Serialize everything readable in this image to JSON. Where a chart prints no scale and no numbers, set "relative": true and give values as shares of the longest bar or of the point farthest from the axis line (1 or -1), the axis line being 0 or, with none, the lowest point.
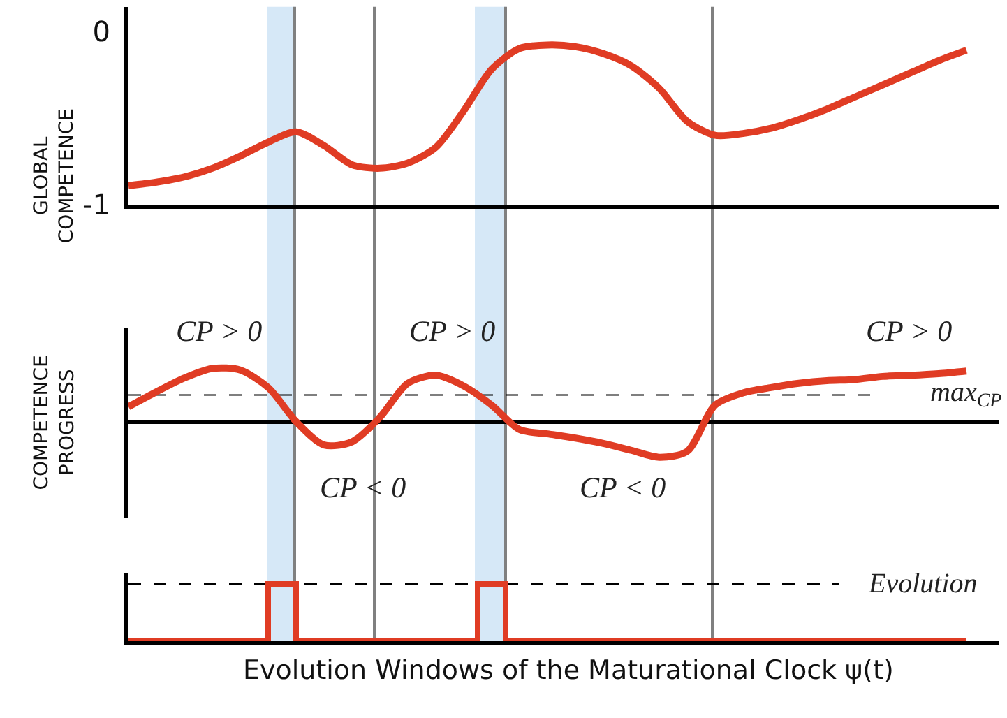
{
  "chart_data": [
    {
      "type": "line",
      "ylabel": "GLOBAL COMPETENCE",
      "categories": [
        null,
        null,
        null,
        null,
        null,
        null,
        null,
        null,
        null,
        null,
        null,
        null,
        null,
        null,
        null,
        null,
        null,
        null,
        null,
        null,
        null,
        null,
        null,
        null,
        null,
        null,
        null,
        null,
        null,
        null,
        null
      ],
      "series": [
        {
          "color": "#e03c24",
          "values": [
            -0.89,
            -0.87,
            -0.84,
            -0.79,
            -0.72,
            -0.64,
            -0.58,
            -0.66,
            -0.77,
            -0.79,
            -0.76,
            -0.67,
            -0.46,
            -0.22,
            -0.1,
            -0.08,
            -0.09,
            -0.13,
            -0.2,
            -0.33,
            -0.52,
            -0.6,
            -0.59,
            -0.56,
            -0.51,
            -0.45,
            -0.38,
            -0.31,
            -0.24,
            -0.17,
            -0.11
          ]
        }
      ],
      "ylim": [
        -1,
        0.14
      ],
      "yticks": [
        0,
        -1
      ],
      "grid": false,
      "line_style": "solid",
      "marker": "none"
    },
    {
      "type": "line",
      "ylabel": "COMPETENCE PROGRESS",
      "relative": true,
      "categories": [
        null,
        null,
        null,
        null,
        null,
        null,
        null,
        null,
        null,
        null,
        null,
        null,
        null,
        null,
        null,
        null,
        null,
        null,
        null,
        null,
        null,
        null,
        null,
        null,
        null,
        null,
        null,
        null,
        null,
        null,
        null
      ],
      "series": [
        {
          "color": "#e03c24",
          "values": [
            0.28,
            0.56,
            0.82,
            1,
            0.97,
            0.64,
            0,
            -0.44,
            -0.38,
            0.08,
            0.72,
            0.87,
            0.67,
            0.31,
            -0.15,
            -0.23,
            -0.31,
            -0.41,
            -0.54,
            -0.67,
            -0.56,
            0.31,
            0.54,
            0.64,
            0.72,
            0.77,
            0.79,
            0.85,
            0.87,
            0.9,
            0.95
          ]
        }
      ],
      "grid": false,
      "line_style": "solid",
      "marker": "none",
      "annotations": [
        "0",
        "CP > 0",
        "CP > 0",
        "CP > 0",
        "CP < 0",
        "CP < 0"
      ],
      "ref_lines": [
        {
          "axis": "y",
          "value": 0.5,
          "label": "max$_{CP}$",
          "color": "#000000",
          "line_style": "dashed"
        }
      ]
    },
    {
      "type": "step",
      "xlabel": "Evolution Windows of the Maturational Clock ψ(t)",
      "relative": true,
      "categories": [
        null,
        null,
        null,
        null,
        null,
        null,
        null,
        null,
        null,
        null,
        null,
        null,
        null,
        null,
        null,
        null,
        null,
        null,
        null,
        null,
        null,
        null,
        null,
        null,
        null,
        null,
        null,
        null,
        null,
        null,
        null,
        null,
        null,
        null,
        null,
        null,
        null,
        null,
        null,
        null,
        null,
        null,
        null,
        null,
        null,
        null,
        null,
        null,
        null,
        null,
        null,
        null,
        null,
        null,
        null,
        null,
        null,
        null,
        null,
        null,
        null
      ],
      "series": [
        {
          "color": "#e03c24",
          "values": [
            0,
            0,
            0,
            0,
            0,
            0,
            0,
            0,
            0,
            0,
            1,
            1,
            0,
            0,
            0,
            0,
            0,
            0,
            0,
            0,
            0,
            0,
            0,
            0,
            0,
            1,
            1,
            0,
            0,
            0,
            0,
            0,
            0,
            0,
            0,
            0,
            0,
            0,
            0,
            0,
            0,
            0,
            0,
            0,
            0,
            0,
            0,
            0,
            0,
            0,
            0,
            0,
            0,
            0,
            0,
            0,
            0,
            0,
            0,
            0,
            0
          ]
        }
      ],
      "grid": false,
      "line_style": "solid",
      "marker": "none",
      "ref_lines": [
        {
          "axis": "y",
          "value": 1,
          "label": "Evolution",
          "color": "#000000",
          "line_style": "dashed"
        }
      ]
    }
  ]
}
